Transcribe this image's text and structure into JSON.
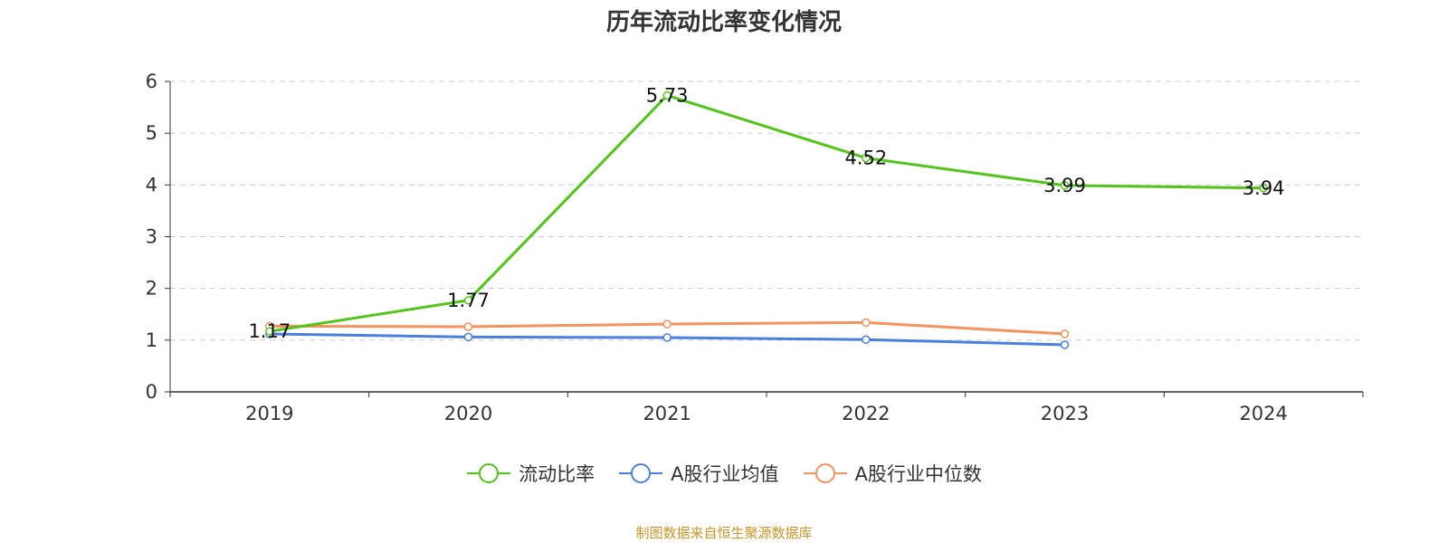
{
  "chart_data": {
    "type": "line",
    "title": "历年流动比率变化情况",
    "categories": [
      "2019",
      "2020",
      "2021",
      "2022",
      "2023",
      "2024"
    ],
    "ylim": [
      0,
      6
    ],
    "yticks": [
      0,
      1,
      2,
      3,
      4,
      5,
      6
    ],
    "grid": true,
    "legend_position": "bottom",
    "series": [
      {
        "name": "流动比率",
        "color": "#52c41a",
        "values": [
          1.17,
          1.77,
          5.73,
          4.52,
          3.99,
          3.94
        ],
        "labels": [
          "1.17",
          "1.77",
          "5.73",
          "4.52",
          "3.99",
          "3.94"
        ]
      },
      {
        "name": "A股行业均值",
        "color": "#4a7fe0",
        "values": [
          1.12,
          1.06,
          1.05,
          1.01,
          0.91,
          null
        ]
      },
      {
        "name": "A股行业中位数",
        "color": "#f5925d",
        "values": [
          1.27,
          1.26,
          1.31,
          1.34,
          1.12,
          null
        ]
      }
    ]
  },
  "source_note": "制图数据来自恒生聚源数据库"
}
